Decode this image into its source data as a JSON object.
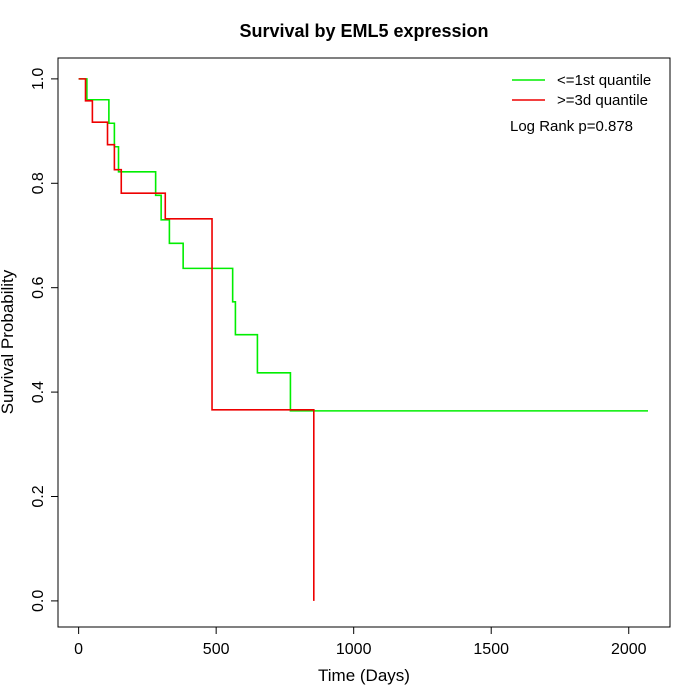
{
  "chart_data": {
    "type": "line",
    "title": "Survival by EML5 expression",
    "xlabel": "Time (Days)",
    "ylabel": "Survival Probability",
    "xlim": [
      -75,
      2150
    ],
    "ylim": [
      -0.05,
      1.04
    ],
    "xticks": [
      0,
      500,
      1000,
      1500,
      2000
    ],
    "yticks": [
      0.0,
      0.2,
      0.4,
      0.6,
      0.8,
      1.0
    ],
    "xtick_labels": [
      "0",
      "500",
      "1000",
      "1500",
      "2000"
    ],
    "ytick_labels": [
      "0.0",
      "0.2",
      "0.4",
      "0.6",
      "0.8",
      "1.0"
    ],
    "legend_position": "top-right",
    "annotation": "Log Rank p=0.878",
    "series": [
      {
        "name": "<=1st quantile",
        "color": "#00ee00",
        "step_x": [
          0,
          30,
          110,
          130,
          145,
          280,
          300,
          330,
          380,
          560,
          570,
          650,
          770,
          850,
          2070
        ],
        "step_y": [
          1.0,
          0.96,
          0.915,
          0.87,
          0.822,
          0.777,
          0.73,
          0.685,
          0.637,
          0.573,
          0.51,
          0.437,
          0.364,
          0.364,
          0.364
        ]
      },
      {
        "name": ">=3d quantile",
        "color": "#ee0000",
        "step_x": [
          0,
          25,
          50,
          105,
          130,
          155,
          315,
          485,
          855,
          855
        ],
        "step_y": [
          1.0,
          0.958,
          0.917,
          0.874,
          0.826,
          0.781,
          0.732,
          0.366,
          0.366,
          0.0
        ]
      }
    ]
  }
}
